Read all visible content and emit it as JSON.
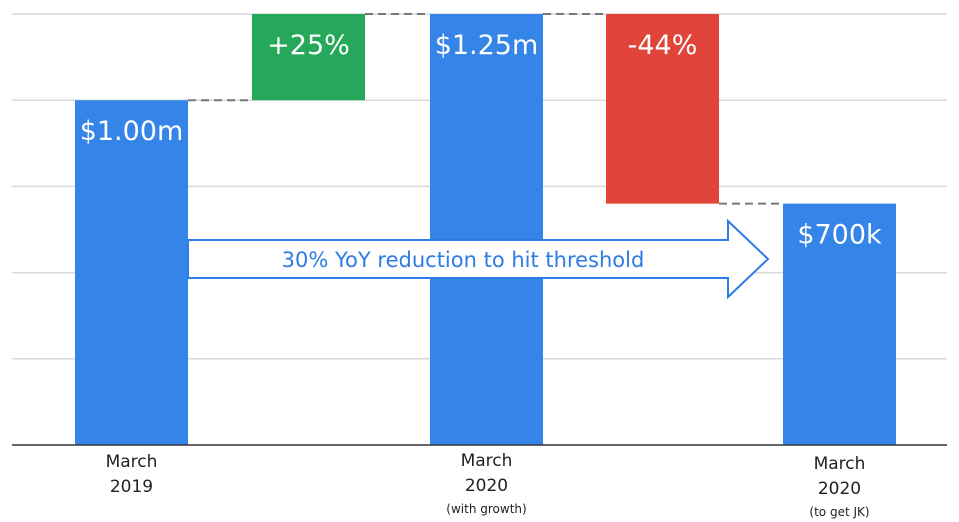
{
  "chart_data": {
    "type": "waterfall",
    "unit": "$m",
    "ylim": [
      0,
      1.25
    ],
    "grid": true,
    "colors": {
      "total": "#3584e8",
      "increase": "#26a85a",
      "decrease": "#e1453a",
      "arrow_stroke": "#2d7be5",
      "gridline": "#d9d9d9",
      "axis": "#333333",
      "connector": "#777777"
    },
    "bars": [
      {
        "id": "march-2019",
        "kind": "total",
        "start": 0,
        "end": 1.0,
        "label": "$1.00m",
        "category": [
          "March",
          "2019"
        ],
        "sublabel": ""
      },
      {
        "id": "growth",
        "kind": "increase",
        "start": 1.0,
        "end": 1.25,
        "label": "+25%",
        "category": [],
        "sublabel": ""
      },
      {
        "id": "march-2020-growth",
        "kind": "total",
        "start": 0,
        "end": 1.25,
        "label": "$1.25m",
        "category": [
          "March",
          "2020"
        ],
        "sublabel": "(with growth)"
      },
      {
        "id": "reduction",
        "kind": "decrease",
        "start": 1.25,
        "end": 0.7,
        "label": "-44%",
        "category": [],
        "sublabel": ""
      },
      {
        "id": "march-2020-jk",
        "kind": "total",
        "start": 0,
        "end": 0.7,
        "label": "$700k",
        "category": [
          "March",
          "2020"
        ],
        "sublabel": "(to get JK)"
      }
    ],
    "annotation": {
      "text": "30% YoY reduction to hit threshold",
      "from_bar": "march-2019",
      "to_bar": "march-2020-jk"
    }
  }
}
